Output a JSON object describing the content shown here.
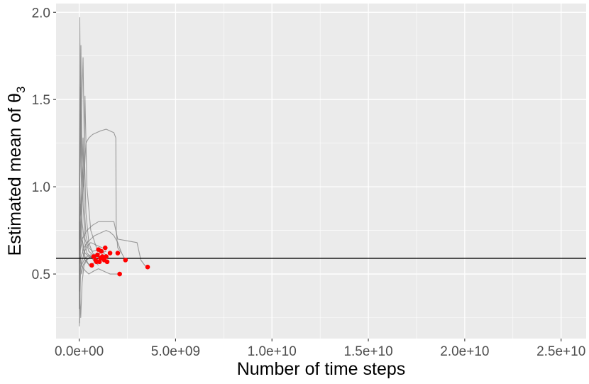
{
  "chart_data": {
    "type": "line",
    "xlabel": "Number of time steps",
    "ylabel": "Estimated mean of θ",
    "ylabel_subscript": "3",
    "xlim": [
      -1200000000.0,
      26300000000.0
    ],
    "ylim": [
      0.13,
      2.05
    ],
    "x_ticks": [
      0,
      5000000000.0,
      10000000000.0,
      15000000000.0,
      20000000000.0,
      25000000000.0
    ],
    "x_tick_labels": [
      "0.0e+00",
      "5.0e+09",
      "1.0e+10",
      "1.5e+10",
      "2.0e+10",
      "2.5e+10"
    ],
    "y_ticks": [
      0.5,
      1.0,
      1.5,
      2.0
    ],
    "y_tick_labels": [
      "0.5",
      "1.0",
      "1.5",
      "2.0"
    ],
    "grid": true,
    "legend": "none",
    "reference_line_y": 0.59,
    "colors": {
      "panel": "#ebebeb",
      "grid_major": "#ffffff",
      "trace": "#7f7f7f",
      "endpoint": "#ff0000",
      "reference": "#000000"
    },
    "series": [
      {
        "x": [
          0,
          10000000.0,
          30000000.0,
          60000000.0,
          100000000.0,
          150000000.0,
          250000000.0,
          400000000.0,
          600000000.0,
          900000000.0,
          1200000000.0
        ],
        "y": [
          0.4,
          1.2,
          1.97,
          1.5,
          1.1,
          0.8,
          0.7,
          0.62,
          0.6,
          0.6,
          0.6
        ]
      },
      {
        "x": [
          0,
          20000000.0,
          50000000.0,
          90000000.0,
          130000000.0,
          200000000.0,
          300000000.0,
          500000000.0,
          800000000.0,
          1100000000.0,
          1400000000.0
        ],
        "y": [
          0.3,
          0.9,
          1.4,
          1.81,
          1.3,
          0.9,
          0.7,
          0.63,
          0.6,
          0.62,
          0.63
        ]
      },
      {
        "x": [
          0,
          30000000.0,
          80000000.0,
          140000000.0,
          200000000.0,
          270000000.0,
          350000000.0,
          500000000.0,
          700000000.0,
          1000000000.0,
          1300000000.0
        ],
        "y": [
          0.6,
          1.0,
          1.3,
          1.5,
          1.74,
          1.2,
          0.85,
          0.68,
          0.62,
          0.6,
          0.58
        ]
      },
      {
        "x": [
          0,
          20000000.0,
          50000000.0,
          100000000.0,
          150000000.0,
          200000000.0,
          260000000.0,
          350000000.0,
          500000000.0,
          700000000.0,
          1000000000.0
        ],
        "y": [
          0.2,
          0.26,
          0.6,
          0.9,
          1.1,
          1.28,
          0.9,
          0.72,
          0.65,
          0.63,
          0.64
        ]
      },
      {
        "x": [
          0,
          20000000.0,
          60000000.0,
          120000000.0,
          220000000.0,
          300000000.0,
          400000000.0,
          600000000.0,
          900000000.0,
          1500000000.0
        ],
        "y": [
          0.5,
          1.1,
          1.57,
          1.2,
          1.0,
          1.52,
          1.0,
          0.75,
          0.65,
          0.6
        ]
      },
      {
        "x": [
          0,
          100000000.0,
          250000000.0,
          350000000.0,
          500000000.0,
          700000000.0,
          900000000.0,
          1100000000.0,
          1400000000.0,
          1600000000.0,
          1800000000.0,
          1900000000.0,
          1920000000.0,
          2000000000.0,
          2200000000.0
        ],
        "y": [
          0.6,
          0.85,
          1.05,
          1.25,
          1.28,
          1.3,
          1.31,
          1.32,
          1.33,
          1.32,
          1.31,
          1.28,
          0.75,
          0.65,
          0.62
        ]
      },
      {
        "x": [
          0,
          150000000.0,
          400000000.0,
          700000000.0,
          1000000000.0,
          1300000000.0,
          1600000000.0,
          1800000000.0,
          2000000000.0,
          2500000000.0,
          3000000000.0,
          3200000000.0,
          3400000000.0,
          3500000000.0
        ],
        "y": [
          0.6,
          0.7,
          0.75,
          0.78,
          0.8,
          0.8,
          0.8,
          0.8,
          0.7,
          0.69,
          0.68,
          0.58,
          0.55,
          0.54
        ]
      },
      {
        "x": [
          0,
          100000000.0,
          250000000.0,
          400000000.0,
          600000000.0,
          800000000.0,
          1000000000.0,
          1200000000.0,
          1400000000.0,
          1600000000.0,
          1800000000.0,
          2000000000.0,
          2200000000.0,
          2400000000.0
        ],
        "y": [
          0.55,
          0.6,
          0.65,
          0.68,
          0.7,
          0.72,
          0.73,
          0.74,
          0.75,
          0.74,
          0.72,
          0.68,
          0.62,
          0.58
        ]
      },
      {
        "x": [
          0,
          100000000.0,
          300000000.0,
          500000000.0,
          800000000.0,
          1000000000.0,
          1200000000.0,
          1400000000.0,
          1600000000.0,
          1800000000.0,
          2000000000.0,
          2100000000.0
        ],
        "y": [
          0.6,
          0.55,
          0.52,
          0.5,
          0.52,
          0.53,
          0.52,
          0.51,
          0.5,
          0.5,
          0.5,
          0.5
        ]
      },
      {
        "x": [
          0,
          30000000.0,
          80000000.0,
          150000000.0,
          250000000.0,
          400000000.0,
          600000000.0,
          800000000.0,
          1000000000.0
        ],
        "y": [
          0.8,
          0.4,
          0.25,
          0.45,
          0.55,
          0.58,
          0.6,
          0.57,
          0.55
        ]
      },
      {
        "x": [
          0,
          20000000.0,
          40000000.0,
          80000000.0,
          120000000.0,
          200000000.0,
          350000000.0,
          600000000.0,
          850000000.0,
          1100000000.0
        ],
        "y": [
          0.6,
          0.22,
          0.35,
          0.55,
          0.5,
          0.55,
          0.58,
          0.6,
          0.61,
          0.59
        ]
      },
      {
        "x": [
          0,
          50000000.0,
          150000000.0,
          300000000.0,
          500000000.0,
          700000000.0,
          900000000.0,
          1200000000.0
        ],
        "y": [
          0.65,
          0.9,
          0.7,
          0.6,
          0.55,
          0.56,
          0.57,
          0.58
        ]
      },
      {
        "x": [
          0,
          50000000.0,
          120000000.0,
          200000000.0,
          300000000.0,
          450000000.0,
          650000000.0
        ],
        "y": [
          0.55,
          0.75,
          0.68,
          0.62,
          0.58,
          0.56,
          0.55
        ]
      },
      {
        "x": [
          0,
          100000000.0,
          250000000.0,
          400000000.0,
          600000000.0,
          800000000.0,
          1000000000.0,
          1200000000.0,
          1400000000.0
        ],
        "y": [
          0.5,
          0.55,
          0.62,
          0.66,
          0.68,
          0.67,
          0.66,
          0.65,
          0.64
        ]
      },
      {
        "x": [
          0,
          30000000.0,
          80000000.0,
          150000000.0,
          300000000.0,
          500000000.0,
          750000000.0,
          950000000.0
        ],
        "y": [
          0.7,
          1.05,
          0.85,
          0.7,
          0.62,
          0.6,
          0.59,
          0.6
        ]
      },
      {
        "x": [
          0,
          20000000.0,
          60000000.0,
          120000000.0,
          250000000.0,
          400000000.0,
          600000000.0,
          900000000.0,
          1300000000.0
        ],
        "y": [
          0.45,
          0.95,
          0.6,
          0.55,
          0.58,
          0.6,
          0.61,
          0.6,
          0.6
        ]
      }
    ],
    "endpoints": {
      "x": [
        650000000.0,
        750000000.0,
        850000000.0,
        900000000.0,
        950000000.0,
        1000000000.0,
        1050000000.0,
        1100000000.0,
        1150000000.0,
        1200000000.0,
        1300000000.0,
        1350000000.0,
        1400000000.0,
        1450000000.0,
        1600000000.0,
        2000000000.0,
        2100000000.0,
        2400000000.0,
        3550000000.0
      ],
      "y": [
        0.55,
        0.6,
        0.58,
        0.57,
        0.61,
        0.64,
        0.57,
        0.59,
        0.63,
        0.6,
        0.58,
        0.65,
        0.6,
        0.57,
        0.62,
        0.62,
        0.5,
        0.58,
        0.54
      ]
    }
  }
}
